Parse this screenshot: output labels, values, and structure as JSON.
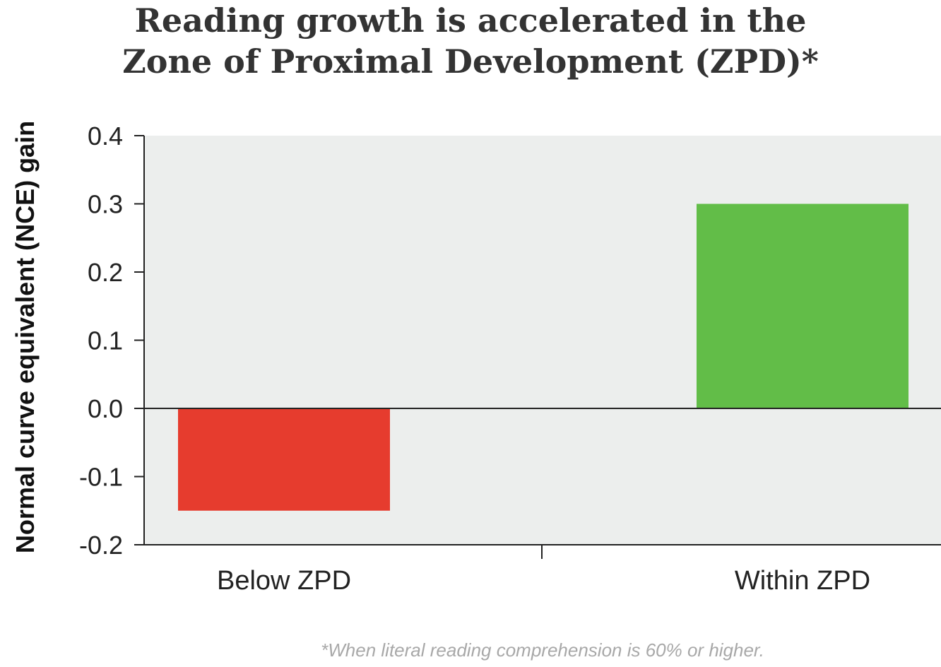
{
  "chart_data": {
    "type": "bar",
    "title_lines": [
      "Reading growth is accelerated in the",
      "Zone of Proximal Development (ZPD)*"
    ],
    "ylabel": "Normal curve equivalent (NCE) gain",
    "xlabel": "",
    "categories": [
      "Below ZPD",
      "Within ZPD"
    ],
    "values": [
      -0.15,
      0.3
    ],
    "colors": [
      "#e63c2e",
      "#62bd48"
    ],
    "ylim": [
      -0.2,
      0.4
    ],
    "yticks": [
      "0.4",
      "0.3",
      "0.2",
      "0.1",
      "0.0",
      "-0.1",
      "-0.2"
    ],
    "ytick_values": [
      0.4,
      0.3,
      0.2,
      0.1,
      0.0,
      -0.1,
      -0.2
    ],
    "plot_background": "#eceeed",
    "grid": false,
    "footnote": "*When literal reading comprehension is 60% or higher."
  }
}
